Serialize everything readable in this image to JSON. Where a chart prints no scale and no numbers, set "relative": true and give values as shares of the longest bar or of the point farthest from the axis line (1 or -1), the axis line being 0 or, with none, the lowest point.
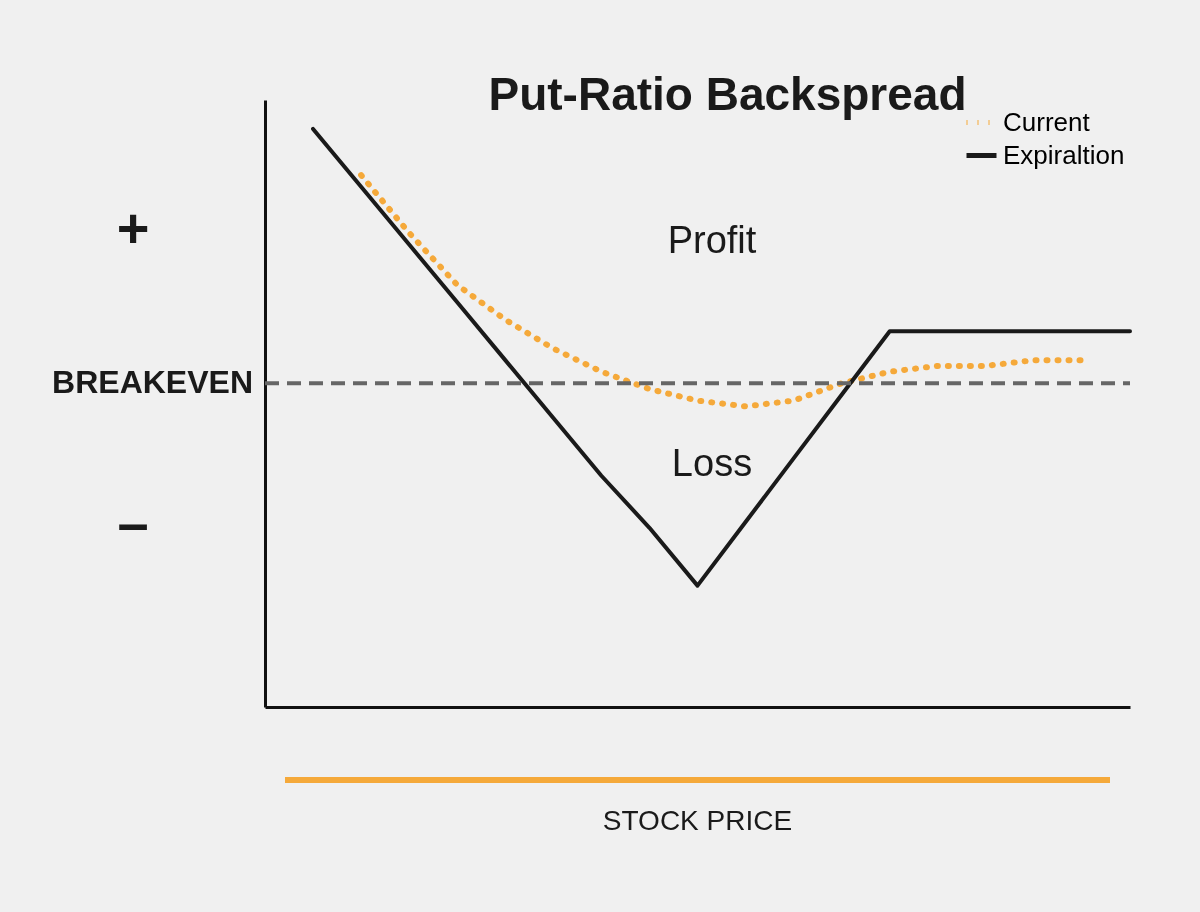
{
  "chart_data": {
    "type": "line",
    "title": "Put-Ratio Backspread",
    "xlabel": "STOCK PRICE",
    "relative": true,
    "legend": "top right",
    "grid": false,
    "marker": "none",
    "categories": [
      null,
      null,
      null,
      null,
      null,
      null,
      null,
      null,
      null,
      null,
      null,
      null,
      null,
      null,
      null,
      null,
      null,
      null,
      null
    ],
    "series": [
      {
        "name": "Current",
        "color": "#f5a93a",
        "line_style": "dotted",
        "values": [
          null,
          null,
          0.92,
          0.82,
          0.73,
          0.67,
          0.62,
          0.58,
          0.55,
          0.53,
          0.52,
          0.53,
          0.56,
          0.58,
          0.59,
          0.59,
          0.6,
          0.6,
          null
        ]
      },
      {
        "name": "Expiraltion",
        "color": "#1a1a1a",
        "line_style": "solid",
        "values": [
          null,
          1.0,
          0.9,
          0.8,
          0.7,
          0.6,
          0.5,
          0.4,
          0.31,
          0.21,
          0.32,
          0.43,
          0.54,
          0.65,
          0.65,
          0.65,
          0.65,
          0.65,
          0.65
        ]
      }
    ],
    "ref_lines": [
      {
        "axis": "y",
        "value": 0.56,
        "label": "BREAKEVEN",
        "color": "#666666",
        "line_style": "dashed"
      }
    ],
    "annotations": [
      "+",
      "–",
      "Profit",
      "Loss"
    ]
  }
}
